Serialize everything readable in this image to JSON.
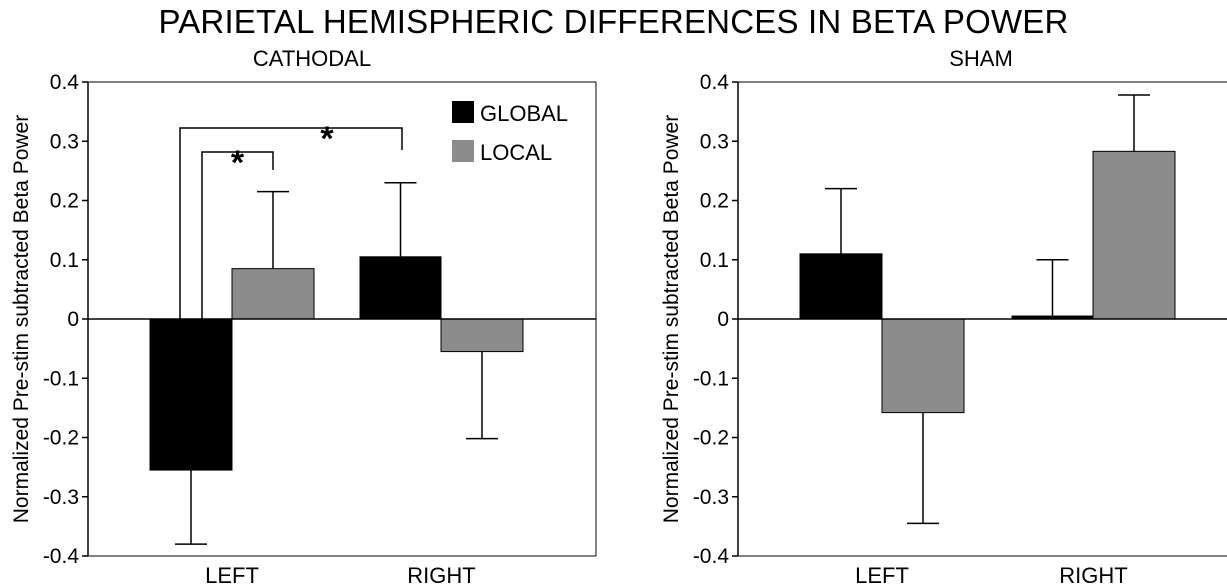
{
  "title": "PARIETAL HEMISPHERIC DIFFERENCES IN BETA POWER",
  "colors": {
    "global": "#000000",
    "local": "#8c8c8c"
  },
  "chart_data": [
    {
      "type": "bar",
      "title": "CATHODAL",
      "ylabel": "Normalized Pre-stim subtracted Beta Power",
      "ylim": [
        -0.4,
        0.4
      ],
      "yticks": [
        "0.4",
        "0.3",
        "0.2",
        "0.1",
        "0",
        "-0.1",
        "-0.2",
        "-0.3",
        "-0.4"
      ],
      "categories": [
        "LEFT",
        "RIGHT"
      ],
      "legend": [
        "GLOBAL",
        "LOCAL"
      ],
      "series": [
        {
          "name": "GLOBAL",
          "values": [
            -0.255,
            0.105
          ],
          "errors": [
            0.125,
            0.125
          ]
        },
        {
          "name": "LOCAL",
          "values": [
            0.085,
            -0.055
          ],
          "errors": [
            0.13,
            0.147
          ]
        }
      ],
      "annotations": [
        {
          "label": "*",
          "from": "LEFT GLOBAL",
          "to": "LEFT LOCAL"
        },
        {
          "label": "*",
          "from": "LEFT GLOBAL",
          "to": "RIGHT GLOBAL"
        }
      ]
    },
    {
      "type": "bar",
      "title": "SHAM",
      "ylabel": "Normalized Pre-stim subtracted Beta Power",
      "ylim": [
        -0.4,
        0.4
      ],
      "yticks": [
        "0.4",
        "0.3",
        "0.2",
        "0.1",
        "0",
        "-0.1",
        "-0.2",
        "-0.3",
        "-0.4"
      ],
      "categories": [
        "LEFT",
        "RIGHT"
      ],
      "series": [
        {
          "name": "GLOBAL",
          "values": [
            0.11,
            0.005
          ],
          "errors": [
            0.11,
            0.095
          ]
        },
        {
          "name": "LOCAL",
          "values": [
            -0.158,
            0.283
          ],
          "errors": [
            0.187,
            0.095
          ]
        }
      ]
    }
  ]
}
